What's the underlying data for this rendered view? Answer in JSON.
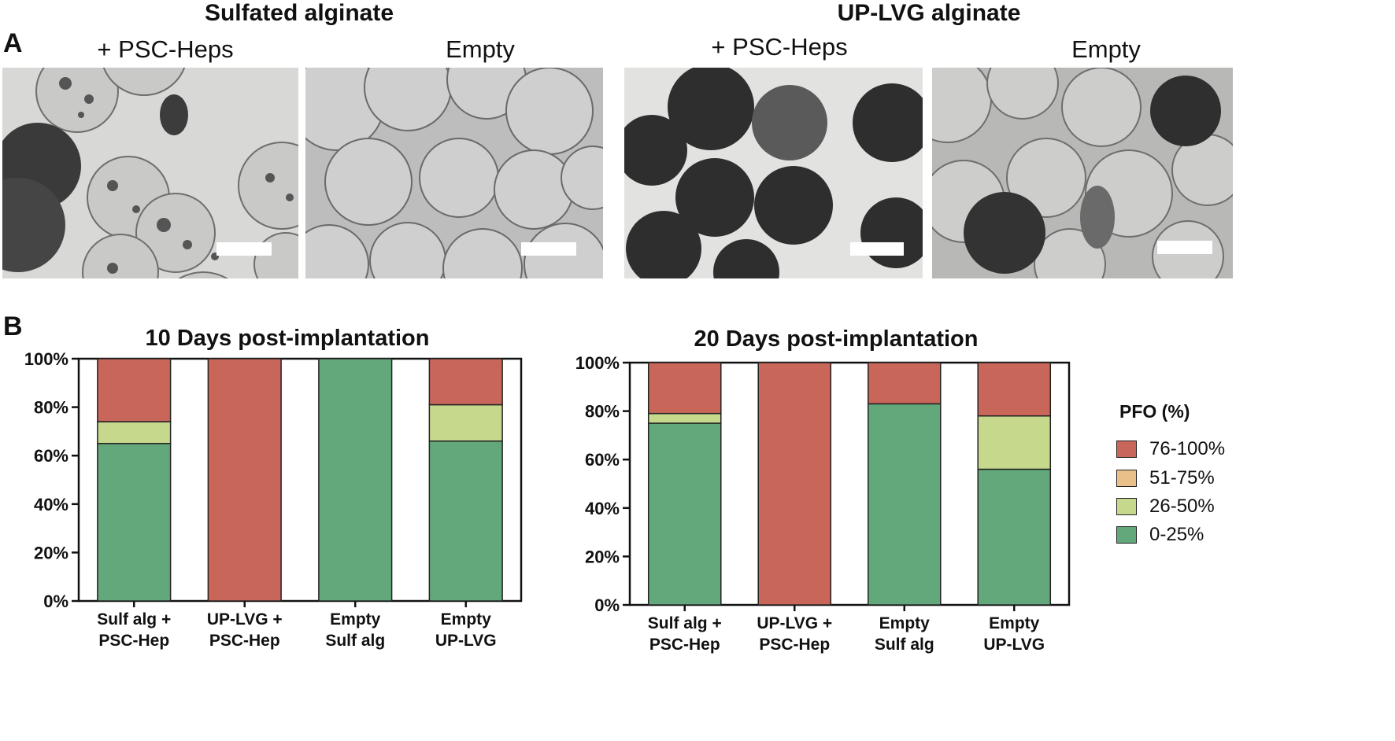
{
  "panel_a": {
    "letter": "A",
    "groups": [
      {
        "title": "Sulfated alginate",
        "subtitles": [
          "+ PSC-Heps",
          "Empty"
        ]
      },
      {
        "title": "UP-LVG alginate",
        "subtitles": [
          "+ PSC-Heps",
          "Empty"
        ]
      }
    ]
  },
  "panel_b": {
    "letter": "B",
    "legend": {
      "title": "PFO (%)",
      "items": [
        {
          "label": "76-100%",
          "color": "#c8665a"
        },
        {
          "label": "51-75%",
          "color": "#e9c08a"
        },
        {
          "label": "26-50%",
          "color": "#c5d88c"
        },
        {
          "label": "0-25%",
          "color": "#62a87a"
        }
      ]
    }
  },
  "chart_data": [
    {
      "type": "bar",
      "stacked": true,
      "title": "10 Days post-implantation",
      "categories": [
        [
          "Sulf alg +",
          "PSC-Hep"
        ],
        [
          "UP-LVG +",
          "PSC-Hep"
        ],
        [
          "Empty",
          "Sulf alg"
        ],
        [
          "Empty",
          "UP-LVG"
        ]
      ],
      "series": [
        {
          "name": "0-25%",
          "color": "#62a87a",
          "values": [
            65,
            0,
            100,
            66
          ]
        },
        {
          "name": "26-50%",
          "color": "#c5d88c",
          "values": [
            9,
            0,
            0,
            15
          ]
        },
        {
          "name": "51-75%",
          "color": "#e9c08a",
          "values": [
            0,
            0,
            0,
            0
          ]
        },
        {
          "name": "76-100%",
          "color": "#c8665a",
          "values": [
            26,
            100,
            0,
            19
          ]
        }
      ],
      "yticks": [
        "0%",
        "20%",
        "40%",
        "60%",
        "80%",
        "100%"
      ],
      "ylim": [
        0,
        100
      ]
    },
    {
      "type": "bar",
      "stacked": true,
      "title": "20 Days post-implantation",
      "categories": [
        [
          "Sulf alg +",
          "PSC-Hep"
        ],
        [
          "UP-LVG +",
          "PSC-Hep"
        ],
        [
          "Empty",
          "Sulf alg"
        ],
        [
          "Empty",
          "UP-LVG"
        ]
      ],
      "series": [
        {
          "name": "0-25%",
          "color": "#62a87a",
          "values": [
            75,
            0,
            83,
            56
          ]
        },
        {
          "name": "26-50%",
          "color": "#c5d88c",
          "values": [
            4,
            0,
            0,
            22
          ]
        },
        {
          "name": "51-75%",
          "color": "#e9c08a",
          "values": [
            0,
            0,
            0,
            0
          ]
        },
        {
          "name": "76-100%",
          "color": "#c8665a",
          "values": [
            21,
            100,
            17,
            22
          ]
        }
      ],
      "yticks": [
        "0%",
        "20%",
        "40%",
        "60%",
        "80%",
        "100%"
      ],
      "ylim": [
        0,
        100
      ]
    }
  ]
}
